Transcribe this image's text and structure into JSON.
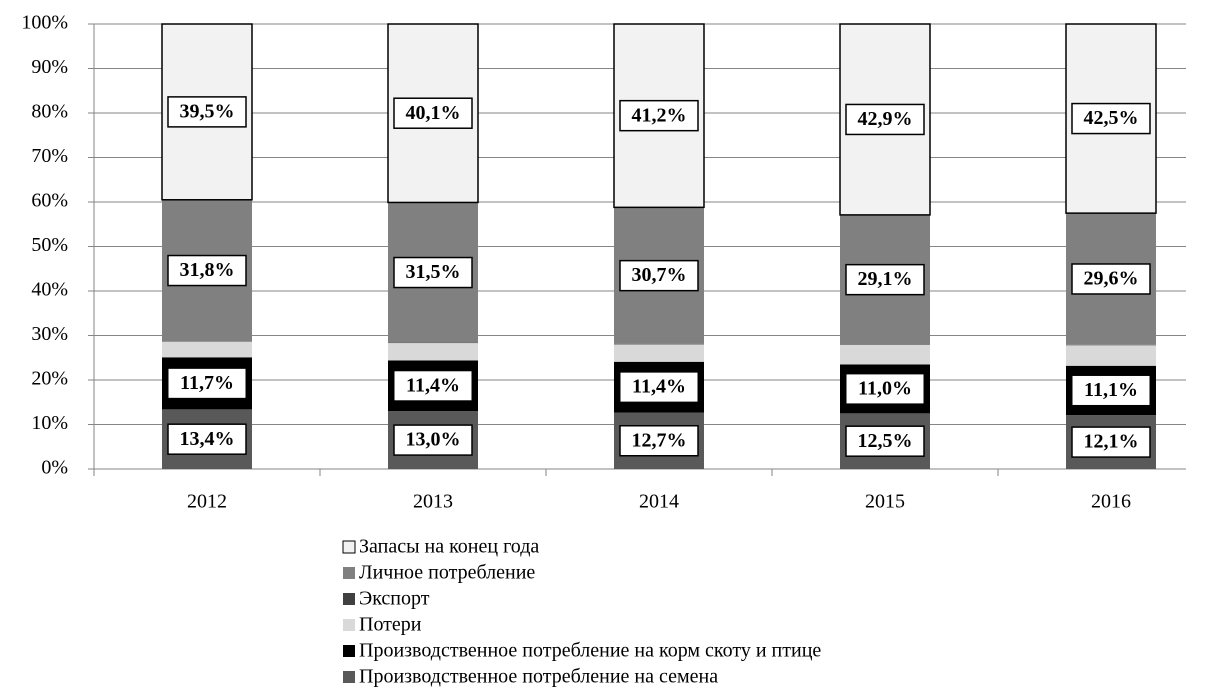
{
  "chart_data": {
    "type": "stacked_bar",
    "categories": [
      "2012",
      "2013",
      "2014",
      "2015",
      "2016"
    ],
    "ylim": [
      0,
      100
    ],
    "yticks": [
      {
        "value": 0,
        "label": "0%"
      },
      {
        "value": 10,
        "label": "10%"
      },
      {
        "value": 20,
        "label": "20%"
      },
      {
        "value": 30,
        "label": "30%"
      },
      {
        "value": 40,
        "label": "40%"
      },
      {
        "value": 50,
        "label": "50%"
      },
      {
        "value": 60,
        "label": "60%"
      },
      {
        "value": 70,
        "label": "70%"
      },
      {
        "value": 80,
        "label": "80%"
      },
      {
        "value": 90,
        "label": "90%"
      },
      {
        "value": 100,
        "label": "100%"
      }
    ],
    "grid": true,
    "legend": "bottom",
    "series": [
      {
        "name": "Производственное потребление на семена",
        "color": "#595959",
        "values": [
          13.4,
          13.0,
          12.7,
          12.5,
          12.1
        ],
        "value_labels": [
          "13,4%",
          "13,0%",
          "12,7%",
          "12,5%",
          "12,1%"
        ]
      },
      {
        "name": "Производственное потребление на корм скоту и птице",
        "color": "#000000",
        "values": [
          11.7,
          11.4,
          11.4,
          11.0,
          11.1
        ],
        "value_labels": [
          "11,7%",
          "11,4%",
          "11,4%",
          "11,0%",
          "11,1%"
        ]
      },
      {
        "name": "Потери",
        "color": "#d9d9d9",
        "values": [
          3.5,
          3.9,
          3.9,
          4.4,
          4.6
        ]
      },
      {
        "name": "Экспорт",
        "color": "#404040",
        "values": [
          0.1,
          0.1,
          0.1,
          0.1,
          0.1
        ]
      },
      {
        "name": "Личное потребление",
        "color": "#808080",
        "values": [
          31.8,
          31.5,
          30.7,
          29.1,
          29.6
        ],
        "value_labels": [
          "31,8%",
          "31,5%",
          "30,7%",
          "29,1%",
          "29,6%"
        ]
      },
      {
        "name": "Запасы на конец года",
        "color": "#f2f2f2",
        "values": [
          39.5,
          40.1,
          41.2,
          42.9,
          42.5
        ],
        "value_labels": [
          "39,5%",
          "40,1%",
          "41,2%",
          "42,9%",
          "42,5%"
        ]
      }
    ]
  }
}
